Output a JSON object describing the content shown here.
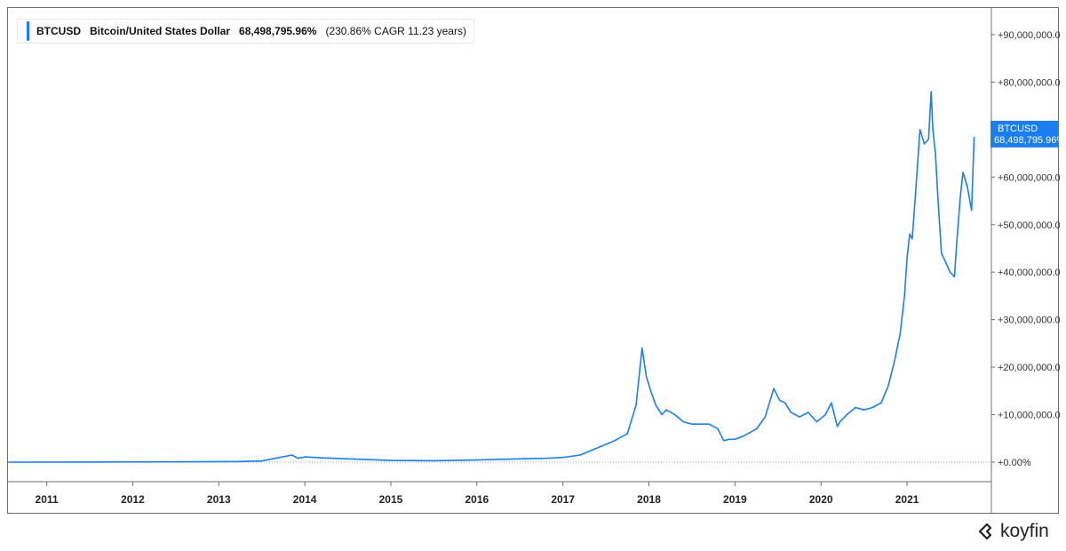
{
  "legend": {
    "symbol": "BTCUSD",
    "name": "Bitcoin/United States Dollar",
    "value": "68,498,795.96%",
    "cagr": "(230.86% CAGR 11.23 years)"
  },
  "last_tag": {
    "symbol": "BTCUSD",
    "value": "68,498,795.96%"
  },
  "brand": {
    "name": "koyfin",
    "icon": "koyfin-logo-icon"
  },
  "colors": {
    "line": "#1a7ef0",
    "tag": "#1a7ef0",
    "axis": "#6f6f6f",
    "text": "#333333"
  },
  "chart_data": {
    "type": "line",
    "title": "",
    "xlabel": "",
    "ylabel": "",
    "grid": false,
    "legend_position": "top-left",
    "y_unit": "%",
    "ylim": [
      -6000000,
      95000000
    ],
    "xlim": [
      2010.55,
      2021.98
    ],
    "x_ticks": [
      {
        "label": "2011",
        "value": 2011
      },
      {
        "label": "2012",
        "value": 2012
      },
      {
        "label": "2013",
        "value": 2013
      },
      {
        "label": "2014",
        "value": 2014
      },
      {
        "label": "2015",
        "value": 2015
      },
      {
        "label": "2016",
        "value": 2016
      },
      {
        "label": "2017",
        "value": 2017
      },
      {
        "label": "2018",
        "value": 2018
      },
      {
        "label": "2019",
        "value": 2019
      },
      {
        "label": "2020",
        "value": 2020
      },
      {
        "label": "2021",
        "value": 2021
      }
    ],
    "y_ticks": [
      {
        "label": "+90,000,000.0",
        "value": 90000000
      },
      {
        "label": "+80,000,000.0",
        "value": 80000000
      },
      {
        "label": "+60,000,000.0",
        "value": 60000000
      },
      {
        "label": "+50,000,000.0",
        "value": 50000000
      },
      {
        "label": "+40,000,000.0",
        "value": 40000000
      },
      {
        "label": "+30,000,000.0",
        "value": 30000000
      },
      {
        "label": "+20,000,000.0",
        "value": 20000000
      },
      {
        "label": "+10,000,000.0",
        "value": 10000000
      },
      {
        "label": "+0.00%",
        "value": 0
      }
    ],
    "baseline": 0,
    "series": [
      {
        "name": "BTCUSD",
        "x": [
          2010.55,
          2011.5,
          2012.5,
          2013.2,
          2013.5,
          2013.85,
          2013.92,
          2014.0,
          2014.2,
          2014.5,
          2014.8,
          2015.0,
          2015.5,
          2016.0,
          2016.5,
          2016.8,
          2017.0,
          2017.2,
          2017.4,
          2017.6,
          2017.75,
          2017.85,
          2017.92,
          2017.97,
          2018.02,
          2018.08,
          2018.15,
          2018.2,
          2018.3,
          2018.4,
          2018.5,
          2018.6,
          2018.7,
          2018.8,
          2018.87,
          2018.93,
          2019.0,
          2019.1,
          2019.25,
          2019.35,
          2019.45,
          2019.52,
          2019.58,
          2019.65,
          2019.75,
          2019.85,
          2019.95,
          2020.05,
          2020.12,
          2020.19,
          2020.22,
          2020.3,
          2020.4,
          2020.5,
          2020.6,
          2020.7,
          2020.78,
          2020.85,
          2020.92,
          2020.97,
          2021.0,
          2021.03,
          2021.06,
          2021.1,
          2021.15,
          2021.2,
          2021.25,
          2021.28,
          2021.3,
          2021.33,
          2021.36,
          2021.4,
          2021.45,
          2021.5,
          2021.55,
          2021.58,
          2021.62,
          2021.65,
          2021.7,
          2021.75,
          2021.78
        ],
        "values": [
          0,
          25000,
          60000,
          120000,
          250000,
          1500000,
          800000,
          1100000,
          900000,
          700000,
          500000,
          350000,
          300000,
          450000,
          700000,
          800000,
          1000000,
          1500000,
          3000000,
          4500000,
          6000000,
          12000000,
          24000000,
          18000000,
          15000000,
          12000000,
          10000000,
          11000000,
          10000000,
          8500000,
          8000000,
          8000000,
          8000000,
          7000000,
          4500000,
          4800000,
          4800000,
          5500000,
          7000000,
          9500000,
          15500000,
          13000000,
          12500000,
          10500000,
          9500000,
          10500000,
          8500000,
          10000000,
          12500000,
          7500000,
          8500000,
          10000000,
          11500000,
          11000000,
          11500000,
          12500000,
          16000000,
          21000000,
          27000000,
          35000000,
          43000000,
          48000000,
          47000000,
          57000000,
          70000000,
          67000000,
          68000000,
          78000000,
          70000000,
          65000000,
          55000000,
          44000000,
          42000000,
          40000000,
          39000000,
          47000000,
          56000000,
          61000000,
          58000000,
          53000000,
          68500000
        ]
      }
    ]
  }
}
